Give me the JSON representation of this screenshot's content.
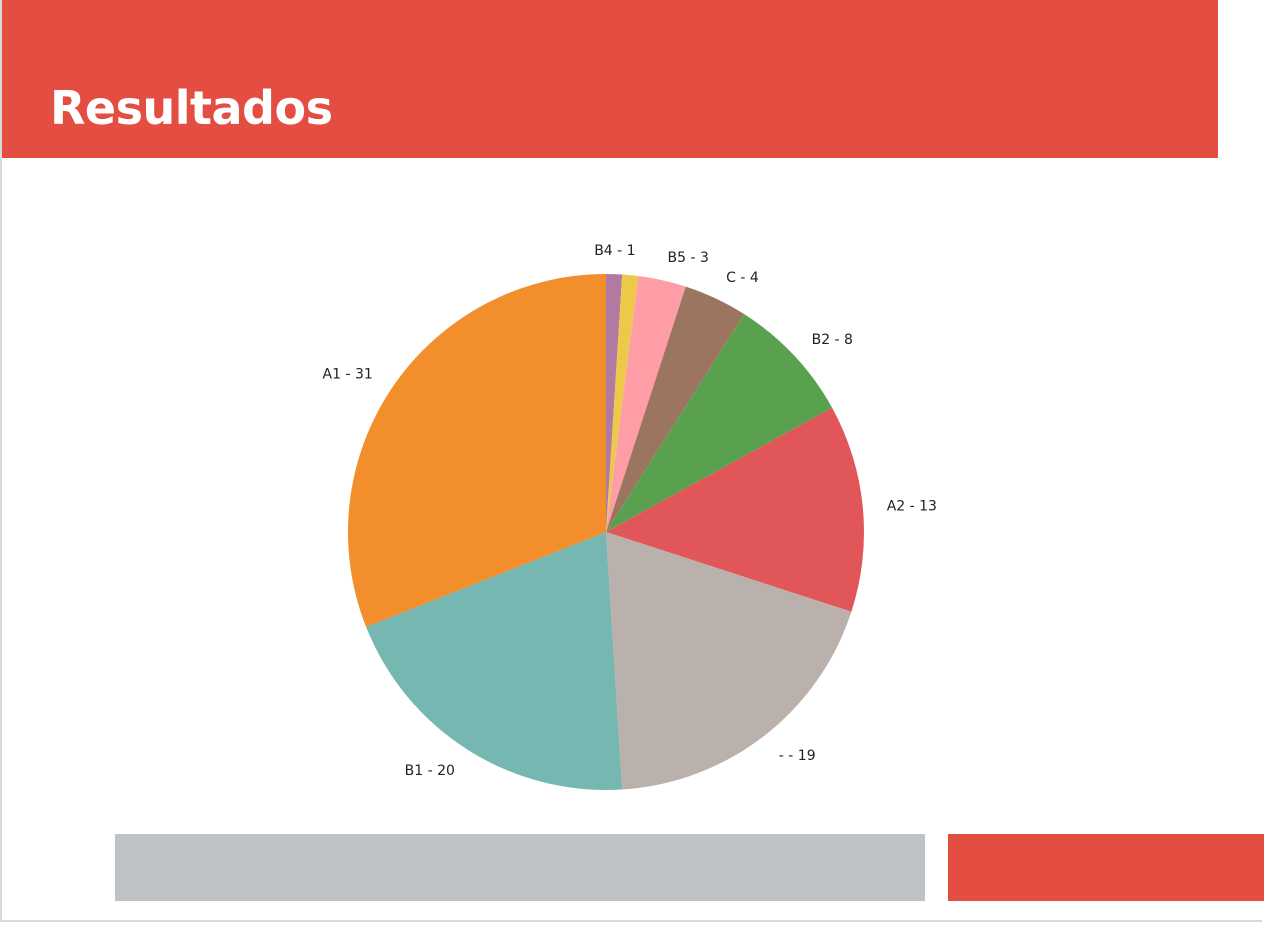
{
  "slide": {
    "title": "Resultados"
  },
  "colors": {
    "banner": "#e44d42",
    "footer_gray": "#bec3c7",
    "footer_red": "#e44d42"
  },
  "chart_data": {
    "type": "pie",
    "start": "top",
    "direction": "clockwise",
    "slices": [
      {
        "label": "B4",
        "value": 1,
        "color": "#b07aa1",
        "display": "B4 - 1"
      },
      {
        "label": "B5",
        "value": 3,
        "color": "#ff9da7",
        "display": "B5 - 3"
      },
      {
        "label": "C",
        "value": 4,
        "color": "#9c7561",
        "display": "C - 4"
      },
      {
        "label": "B2",
        "value": 8,
        "color": "#59a14f",
        "display": "B2 - 8"
      },
      {
        "label": "A2",
        "value": 13,
        "color": "#e15759",
        "display": "A2 - 13"
      },
      {
        "label": "-",
        "value": 19,
        "color": "#bab0ac",
        "display": "- - 19"
      },
      {
        "label": "B1",
        "value": 20,
        "color": "#76b7b2",
        "display": "B1 - 20"
      },
      {
        "label": "A1",
        "value": 31,
        "color": "#f28e2b",
        "display": "A1 - 31"
      }
    ],
    "extra_wedges": [
      {
        "after": "B4",
        "value": 1,
        "color": "#edc949"
      }
    ]
  }
}
